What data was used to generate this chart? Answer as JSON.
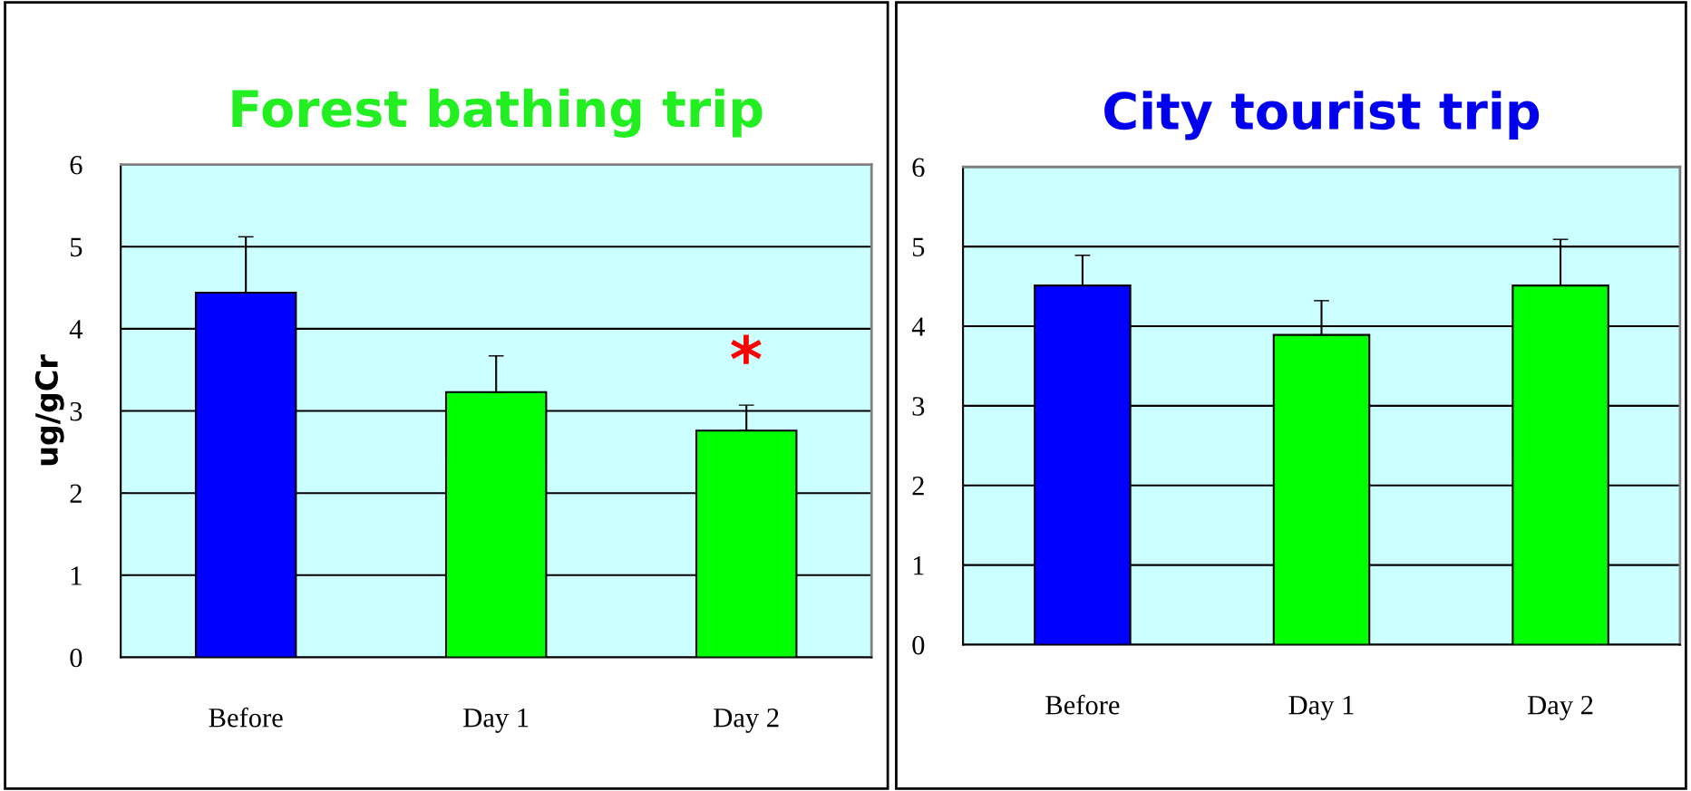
{
  "chart_data": [
    {
      "type": "bar",
      "title": "Forest bathing trip",
      "ylabel": "ug/gCr",
      "categories": [
        "Before",
        "Day 1",
        "Day 2"
      ],
      "values": [
        4.44,
        3.23,
        2.76
      ],
      "colors": [
        "#0000ff",
        "#00ff00",
        "#00ff00"
      ],
      "errors": [
        [
          4.44,
          5.12
        ],
        [
          3.23,
          3.67
        ],
        [
          2.76,
          3.07
        ]
      ],
      "ylim": [
        0,
        6
      ],
      "yticks": [
        0,
        1,
        2,
        3,
        4,
        5,
        6
      ],
      "grid": "y",
      "annotations": [
        "*"
      ]
    },
    {
      "type": "bar",
      "title": "City tourist trip",
      "categories": [
        "Before",
        "Day 1",
        "Day 2"
      ],
      "values": [
        4.51,
        3.89,
        4.51
      ],
      "colors": [
        "#0000ff",
        "#00ff00",
        "#00ff00"
      ],
      "errors": [
        [
          4.51,
          4.89
        ],
        [
          3.89,
          4.32
        ],
        [
          4.51,
          5.09
        ]
      ],
      "ylim": [
        0,
        6
      ],
      "yticks": [
        0,
        1,
        2,
        3,
        4,
        5,
        6
      ],
      "grid": "y"
    }
  ]
}
